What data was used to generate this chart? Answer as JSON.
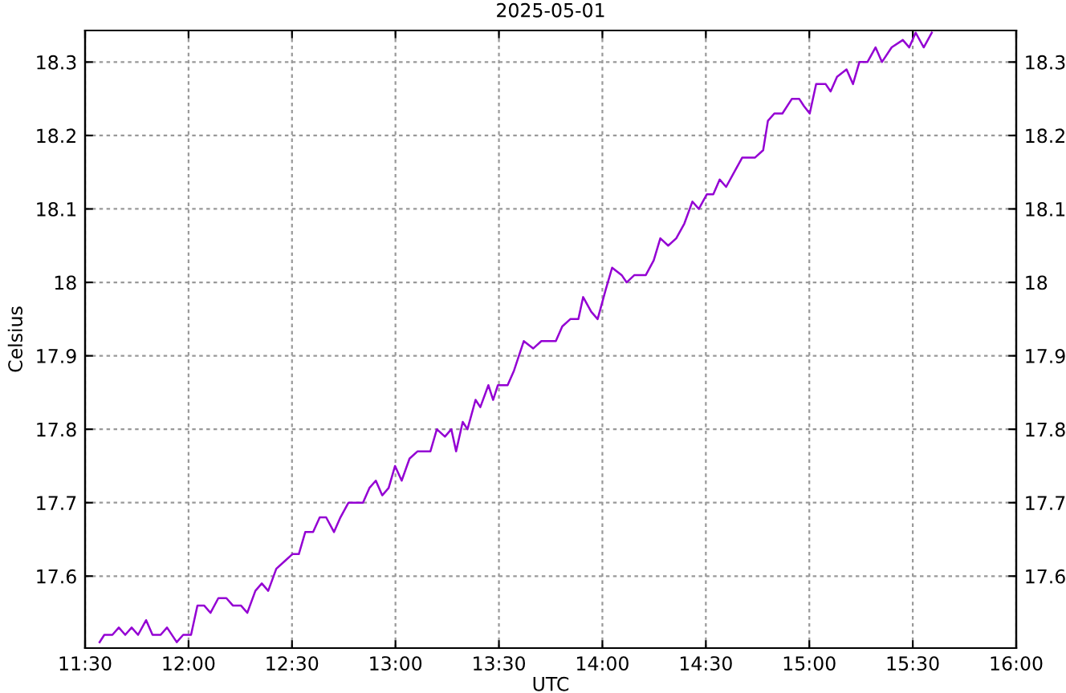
{
  "chart_data": {
    "type": "line",
    "title": "2025-05-01",
    "xlabel": "UTC",
    "ylabel": "Celsius",
    "x": [
      11.57,
      11.593,
      11.632,
      11.663,
      11.694,
      11.725,
      11.756,
      11.795,
      11.826,
      11.865,
      11.896,
      11.943,
      11.974,
      12.012,
      12.043,
      12.075,
      12.106,
      12.144,
      12.183,
      12.214,
      12.253,
      12.284,
      12.323,
      12.354,
      12.385,
      12.424,
      12.463,
      12.502,
      12.533,
      12.564,
      12.602,
      12.634,
      12.665,
      12.703,
      12.734,
      12.773,
      12.812,
      12.843,
      12.874,
      12.905,
      12.936,
      12.967,
      12.998,
      13.03,
      13.068,
      13.107,
      13.169,
      13.2,
      13.239,
      13.27,
      13.293,
      13.325,
      13.348,
      13.387,
      13.41,
      13.449,
      13.472,
      13.495,
      13.542,
      13.573,
      13.62,
      13.666,
      13.705,
      13.775,
      13.806,
      13.845,
      13.884,
      13.907,
      13.946,
      13.977,
      14.016,
      14.047,
      14.093,
      14.117,
      14.155,
      14.21,
      14.248,
      14.28,
      14.318,
      14.357,
      14.396,
      14.435,
      14.466,
      14.505,
      14.536,
      14.567,
      14.598,
      14.637,
      14.676,
      14.738,
      14.777,
      14.8,
      14.831,
      14.87,
      14.916,
      14.951,
      14.974,
      15.002,
      15.033,
      15.079,
      15.103,
      15.134,
      15.18,
      15.211,
      15.242,
      15.281,
      15.32,
      15.351,
      15.398,
      15.452,
      15.483,
      15.514,
      15.553,
      15.592
    ],
    "series": [
      {
        "color": "#9400d3",
        "values": [
          17.51,
          17.52,
          17.52,
          17.53,
          17.52,
          17.53,
          17.52,
          17.54,
          17.52,
          17.52,
          17.53,
          17.51,
          17.52,
          17.52,
          17.56,
          17.56,
          17.55,
          17.57,
          17.57,
          17.56,
          17.56,
          17.55,
          17.58,
          17.59,
          17.58,
          17.61,
          17.62,
          17.63,
          17.63,
          17.66,
          17.66,
          17.68,
          17.68,
          17.66,
          17.68,
          17.7,
          17.7,
          17.7,
          17.72,
          17.73,
          17.71,
          17.72,
          17.75,
          17.73,
          17.76,
          17.77,
          17.77,
          17.8,
          17.79,
          17.8,
          17.77,
          17.81,
          17.8,
          17.84,
          17.83,
          17.86,
          17.84,
          17.86,
          17.86,
          17.88,
          17.92,
          17.91,
          17.92,
          17.92,
          17.94,
          17.95,
          17.95,
          17.98,
          17.96,
          17.95,
          17.99,
          18.02,
          18.01,
          18.0,
          18.01,
          18.01,
          18.03,
          18.06,
          18.05,
          18.06,
          18.08,
          18.11,
          18.1,
          18.12,
          18.12,
          18.14,
          18.13,
          18.15,
          18.17,
          18.17,
          18.18,
          18.22,
          18.23,
          18.23,
          18.25,
          18.25,
          18.24,
          18.23,
          18.27,
          18.27,
          18.26,
          18.28,
          18.29,
          18.27,
          18.3,
          18.3,
          18.32,
          18.3,
          18.32,
          18.33,
          18.32,
          18.34,
          18.32,
          18.34
        ]
      }
    ],
    "xlim": [
      11.5,
      16
    ],
    "xticks": [
      {
        "value": 11.5,
        "label": "11:30"
      },
      {
        "value": 12,
        "label": "12:00"
      },
      {
        "value": 12.5,
        "label": "12:30"
      },
      {
        "value": 13,
        "label": "13:00"
      },
      {
        "value": 13.5,
        "label": "13:30"
      },
      {
        "value": 14,
        "label": "14:00"
      },
      {
        "value": 14.5,
        "label": "14:30"
      },
      {
        "value": 15,
        "label": "15:00"
      },
      {
        "value": 15.5,
        "label": "15:30"
      },
      {
        "value": 16,
        "label": "16:00"
      }
    ],
    "ylim": [
      17.502,
      18.343
    ],
    "yticks": [
      17.6,
      17.7,
      17.8,
      17.9,
      18,
      18.1,
      18.2,
      18.3
    ],
    "y2lim": [
      17.502,
      18.343
    ],
    "y2ticks": [
      17.6,
      17.7,
      17.8,
      17.9,
      18,
      18.1,
      18.2,
      18.3
    ],
    "grid": true,
    "line_style": "solid",
    "marker": "none"
  }
}
